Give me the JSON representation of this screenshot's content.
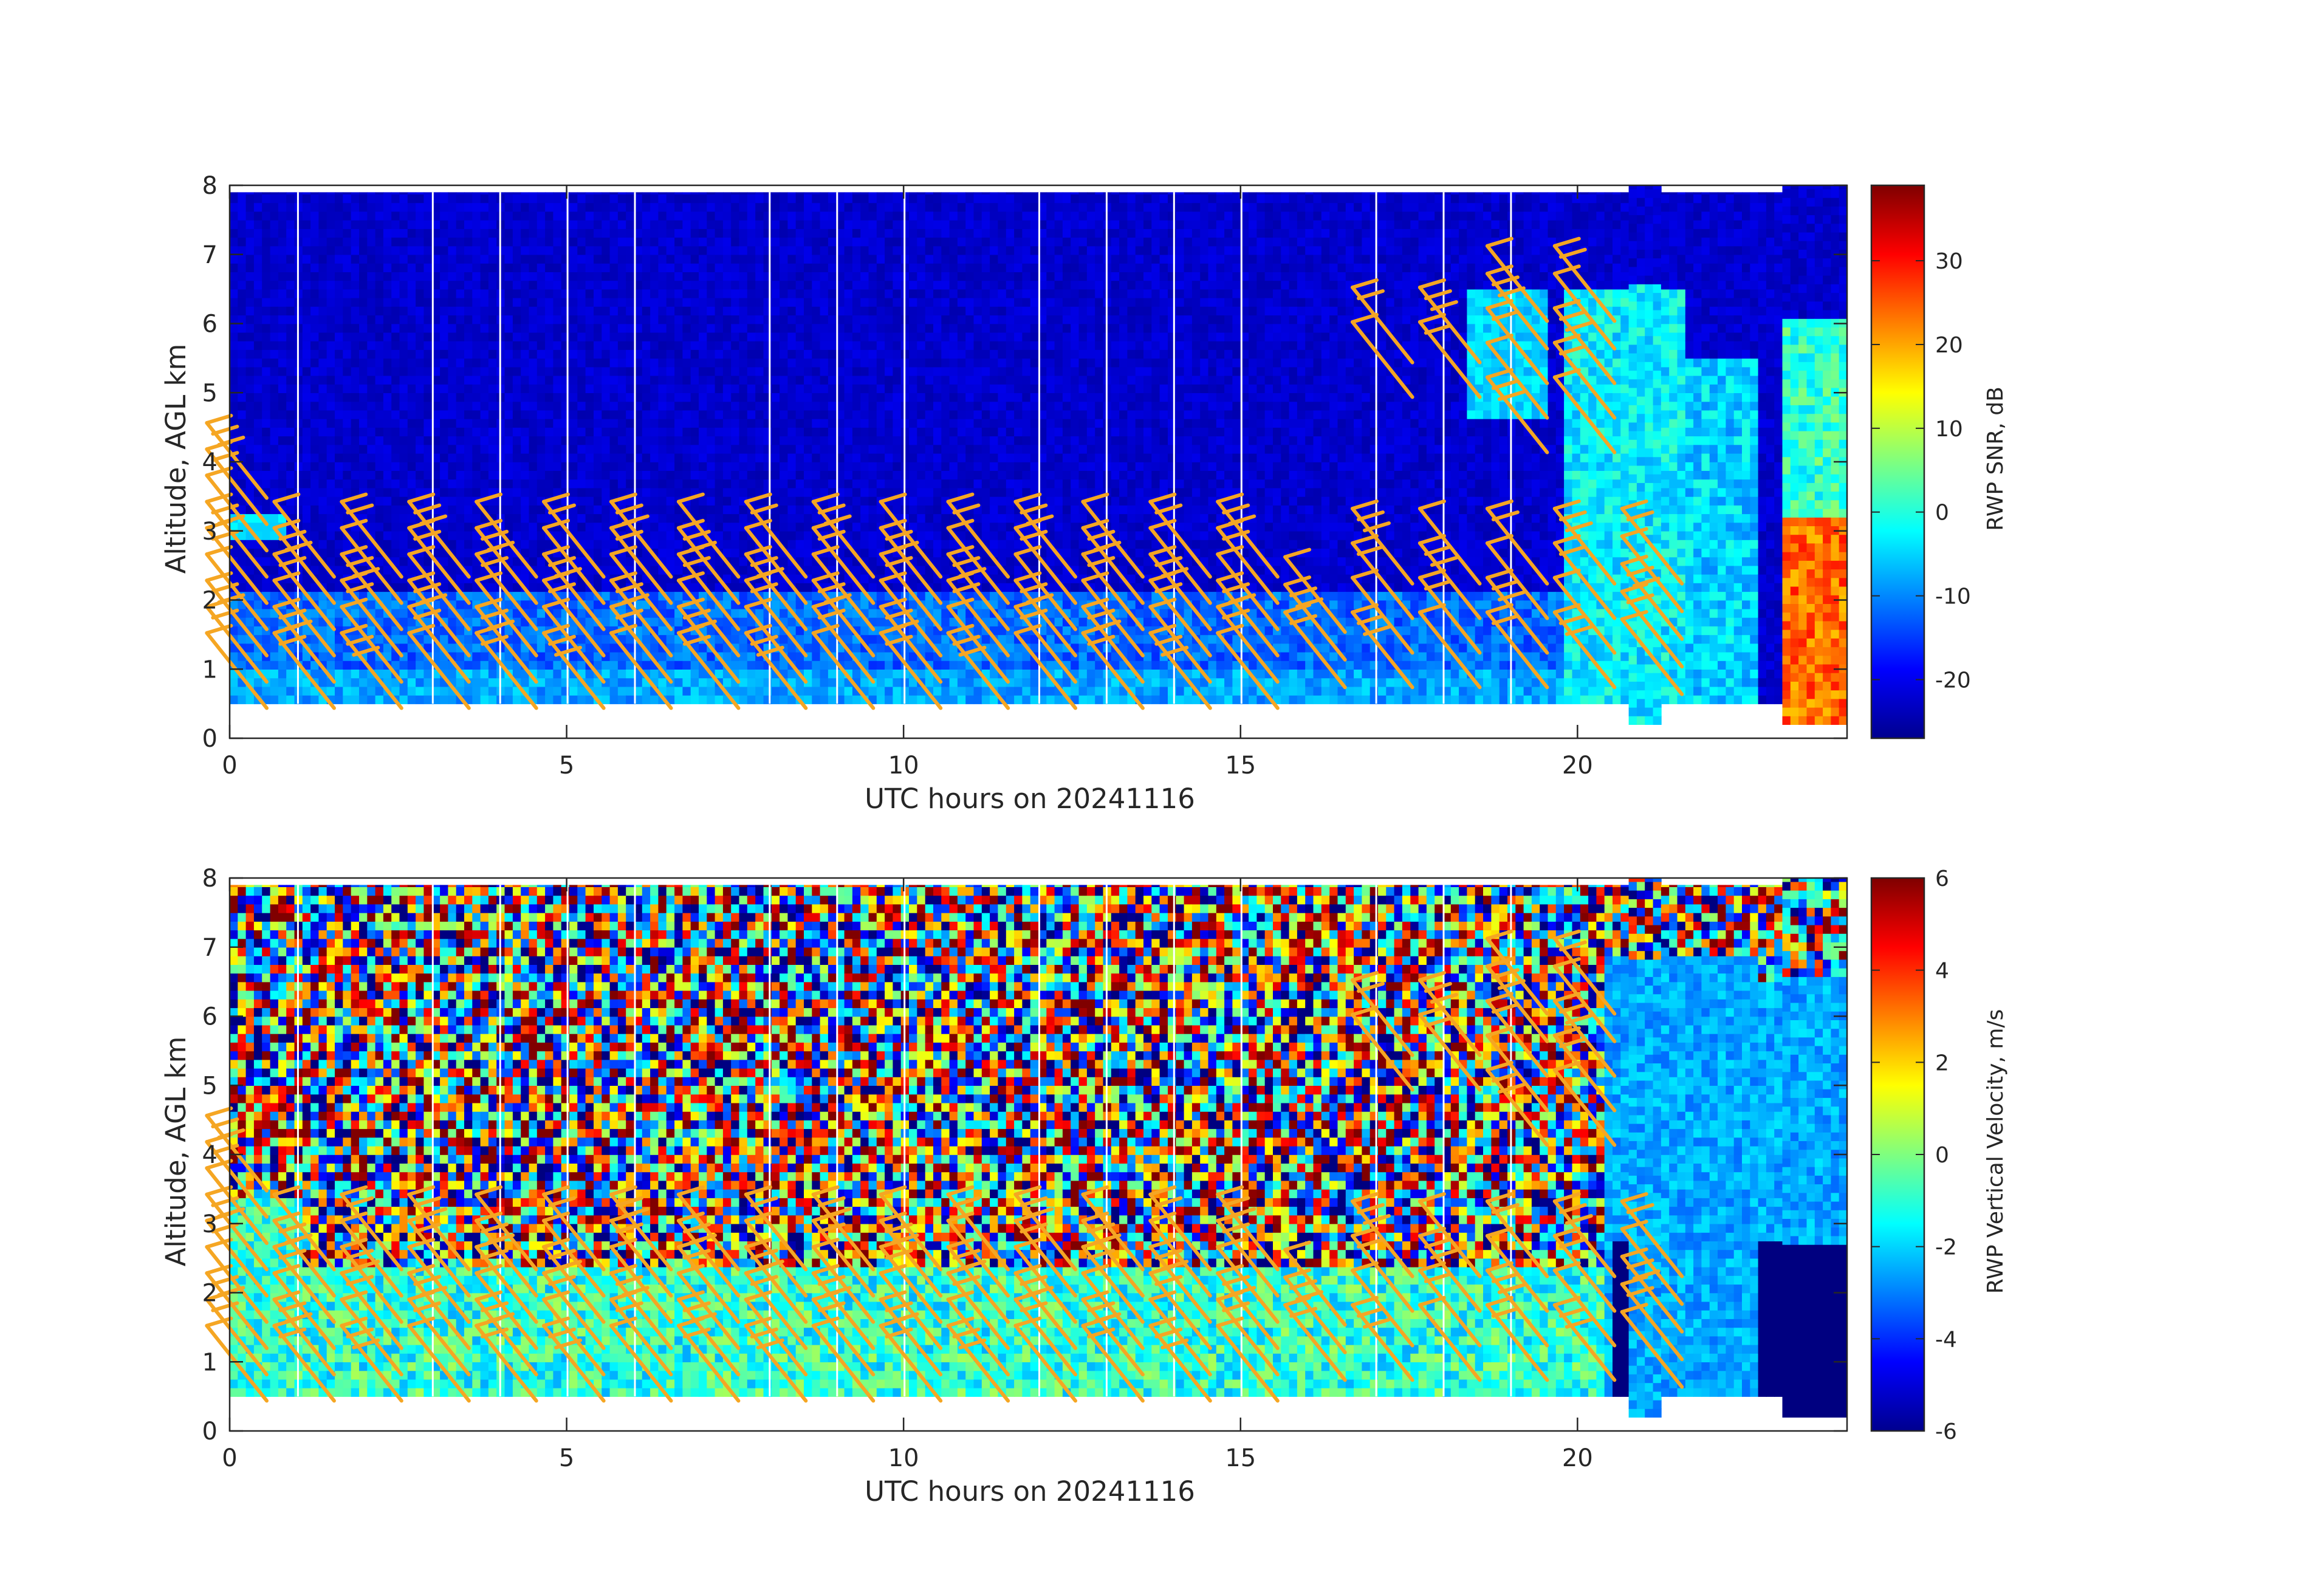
{
  "figure": {
    "panels": [
      {
        "xlabel": "UTC hours on 20241116",
        "ylabel": "Altitude, AGL km",
        "colorbar_label": "RWP SNR, dB"
      },
      {
        "xlabel": "UTC hours on 20241116",
        "ylabel": "Altitude, AGL km",
        "colorbar_label": "RWP Vertical Velocity, m/s"
      }
    ]
  },
  "chart_data": [
    {
      "type": "heatmap",
      "x": {
        "label": "UTC hours on 20241116",
        "range": [
          0,
          24
        ],
        "ticks": [
          0,
          5,
          10,
          15,
          20
        ]
      },
      "y": {
        "label": "Altitude, AGL km",
        "range": [
          0,
          8
        ],
        "ticks": [
          0,
          1,
          2,
          3,
          4,
          5,
          6,
          7,
          8
        ]
      },
      "colorbar": {
        "label": "RWP SNR, dB",
        "range": [
          -27,
          39
        ],
        "ticks": [
          -20,
          -10,
          0,
          10,
          20,
          30
        ],
        "colormap": "jet"
      },
      "data_gaps_hours": [
        1.0,
        3.0,
        4.0,
        5.0,
        6.0,
        8.0,
        9.0,
        10.0,
        12.0,
        13.0,
        14.0,
        15.0,
        17.0,
        18.0,
        19.0
      ],
      "coverage": {
        "low_mode_bottom_km": 0.5,
        "high_mode_bottom_km": 0.2,
        "top_km": 7.9
      },
      "features": [
        {
          "desc": "boundary layer echo",
          "x_range": [
            0,
            20
          ],
          "y_range": [
            0.5,
            2.2
          ],
          "value_db": -8
        },
        {
          "desc": "deep cloud echo",
          "x_range": [
            19.5,
            22.5
          ],
          "y_range": [
            0.5,
            6.5
          ],
          "value_db": 0
        },
        {
          "desc": "strong precipitation echo",
          "x_range": [
            23,
            24
          ],
          "y_range": [
            0.2,
            3.1
          ],
          "value_db": 25
        }
      ],
      "wind_barbs": {
        "color": "#f5a623"
      }
    },
    {
      "type": "heatmap",
      "x": {
        "label": "UTC hours on 20241116",
        "range": [
          0,
          24
        ],
        "ticks": [
          0,
          5,
          10,
          15,
          20
        ]
      },
      "y": {
        "label": "Altitude, AGL km",
        "range": [
          0,
          8
        ],
        "ticks": [
          0,
          1,
          2,
          3,
          4,
          5,
          6,
          7,
          8
        ]
      },
      "colorbar": {
        "label": "RWP Vertical Velocity, m/s",
        "range": [
          -6,
          6
        ],
        "ticks": [
          -6,
          -4,
          -2,
          0,
          2,
          4,
          6
        ],
        "colormap": "jet"
      },
      "data_gaps_hours": [
        1.0,
        3.0,
        4.0,
        5.0,
        6.0,
        8.0,
        9.0,
        10.0,
        12.0,
        13.0,
        14.0,
        15.0,
        17.0,
        18.0,
        19.0
      ],
      "coverage": {
        "low_mode_bottom_km": 0.5,
        "high_mode_bottom_km": 0.2,
        "top_km": 7.9
      },
      "features": [
        {
          "desc": "noise (random velocities)",
          "x_range": [
            0,
            23
          ],
          "y_range": [
            2.5,
            7.9
          ],
          "value_ms": "random"
        },
        {
          "desc": "boundary layer weak updrafts",
          "x_range": [
            0,
            20
          ],
          "y_range": [
            0.5,
            2.2
          ],
          "value_ms": -1
        },
        {
          "desc": "falling precipitation",
          "x_range": [
            20.5,
            24
          ],
          "y_range": [
            0.2,
            2.7
          ],
          "value_ms": -6
        }
      ],
      "wind_barbs": {
        "color": "#f5a623"
      }
    }
  ]
}
